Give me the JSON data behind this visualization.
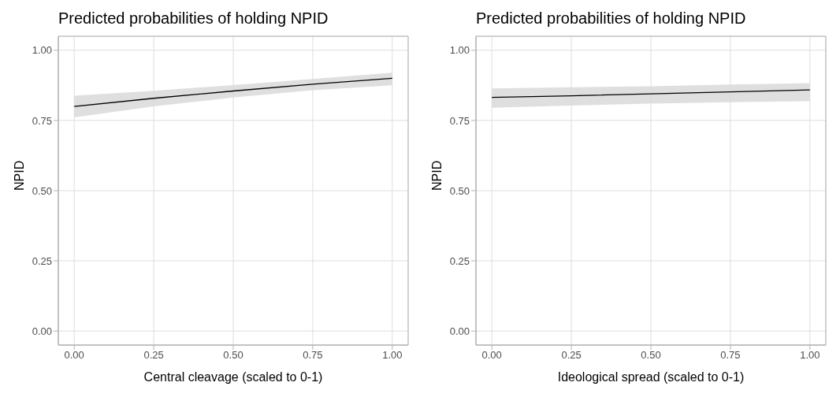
{
  "chart_data": [
    {
      "type": "line",
      "title": "Predicted probabilities of holding NPID",
      "xlabel": "Central cleavage (scaled to 0-1)",
      "ylabel": "NPID",
      "x": [
        0,
        0.25,
        0.5,
        0.75,
        1
      ],
      "series": [
        {
          "color": "#000000",
          "values": [
            0.8,
            0.829,
            0.855,
            0.879,
            0.9
          ],
          "lower": [
            0.761,
            0.8,
            0.832,
            0.858,
            0.875
          ],
          "upper": [
            0.838,
            0.856,
            0.876,
            0.898,
            0.92
          ]
        }
      ],
      "xlim": [
        -0.05,
        1.05
      ],
      "xticks": [
        {
          "value": 0,
          "label": "0.00"
        },
        {
          "value": 0.25,
          "label": "0.25"
        },
        {
          "value": 0.5,
          "label": "0.50"
        },
        {
          "value": 0.75,
          "label": "0.75"
        },
        {
          "value": 1,
          "label": "1.00"
        }
      ],
      "ylim": [
        -0.05,
        1.05
      ],
      "yticks": [
        {
          "value": 0,
          "label": "0.00"
        },
        {
          "value": 0.25,
          "label": "0.25"
        },
        {
          "value": 0.5,
          "label": "0.50"
        },
        {
          "value": 0.75,
          "label": "0.75"
        },
        {
          "value": 1,
          "label": "1.00"
        }
      ],
      "grid": true
    },
    {
      "type": "line",
      "title": "Predicted probabilities of holding NPID",
      "xlabel": "Ideological spread (scaled to 0-1)",
      "ylabel": "NPID",
      "x": [
        0,
        0.25,
        0.5,
        0.75,
        1
      ],
      "series": [
        {
          "color": "#000000",
          "values": [
            0.832,
            0.838,
            0.845,
            0.852,
            0.859
          ],
          "lower": [
            0.795,
            0.803,
            0.81,
            0.815,
            0.819
          ],
          "upper": [
            0.864,
            0.868,
            0.872,
            0.878,
            0.883
          ]
        }
      ],
      "xlim": [
        -0.05,
        1.05
      ],
      "xticks": [
        {
          "value": 0,
          "label": "0.00"
        },
        {
          "value": 0.25,
          "label": "0.25"
        },
        {
          "value": 0.5,
          "label": "0.50"
        },
        {
          "value": 0.75,
          "label": "0.75"
        },
        {
          "value": 1,
          "label": "1.00"
        }
      ],
      "ylim": [
        -0.05,
        1.05
      ],
      "yticks": [
        {
          "value": 0,
          "label": "0.00"
        },
        {
          "value": 0.25,
          "label": "0.25"
        },
        {
          "value": 0.5,
          "label": "0.50"
        },
        {
          "value": 0.75,
          "label": "0.75"
        },
        {
          "value": 1,
          "label": "1.00"
        }
      ],
      "grid": true
    }
  ]
}
